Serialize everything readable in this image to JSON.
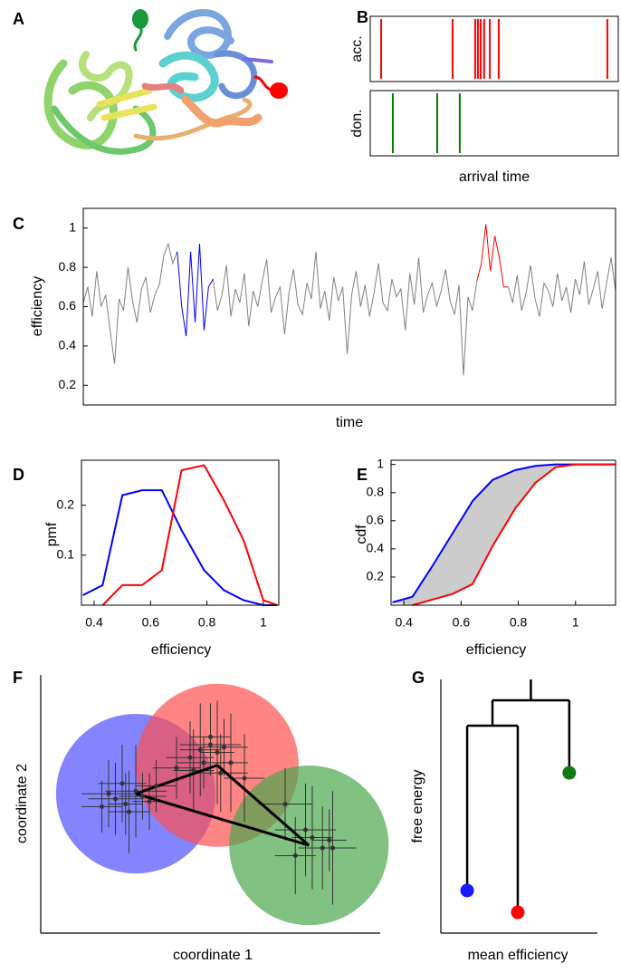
{
  "chart_data": [
    {
      "type": "image",
      "panel": "A"
    },
    {
      "type": "raster",
      "panel": "B",
      "xlabel": "arrival time",
      "xlim": [
        0,
        100
      ],
      "series": [
        {
          "name": "acc.",
          "color": "#ff0000",
          "values": [
            4.4,
            33.2,
            42.3,
            43.4,
            44.5,
            45.9,
            48.2,
            51.8,
            95.6
          ]
        },
        {
          "name": "don.",
          "color": "#008000",
          "values": [
            9.1,
            27.0,
            36.1
          ]
        }
      ]
    },
    {
      "type": "line",
      "panel": "C",
      "xlabel": "time",
      "ylabel": "efficiency",
      "x": [
        0,
        1,
        2,
        3,
        4,
        5,
        6,
        7,
        8,
        9,
        10,
        11,
        12,
        13,
        14,
        15,
        16,
        17,
        18,
        19,
        20,
        21,
        22,
        23,
        24,
        25,
        26,
        27,
        28,
        29,
        30,
        31,
        32,
        33,
        34,
        35,
        36,
        37,
        38,
        39,
        40,
        41,
        42,
        43,
        44,
        45,
        46,
        47,
        48,
        49,
        50,
        51,
        52,
        53,
        54,
        55,
        56,
        57,
        58,
        59,
        60,
        61,
        62,
        63,
        64,
        65,
        66,
        67,
        68,
        69,
        70,
        71,
        72,
        73,
        74,
        75,
        76,
        77,
        78,
        79,
        80,
        81,
        82,
        83,
        84,
        85,
        86,
        87,
        88,
        89,
        90,
        91,
        92,
        93,
        94,
        95,
        96,
        97,
        98,
        99,
        100,
        101,
        102,
        103,
        104,
        105,
        106,
        107,
        108,
        109,
        110,
        111,
        112,
        113,
        114,
        115,
        116,
        117,
        118,
        119
      ],
      "xlim": [
        0,
        119
      ],
      "ylim": [
        0.1,
        1.1
      ],
      "yticks": [
        0.2,
        0.4,
        0.6,
        0.8,
        1
      ],
      "series": [
        {
          "color": "#808080",
          "values": [
            0.62,
            0.7,
            0.55,
            0.78,
            0.6,
            0.66,
            0.48,
            0.31,
            0.64,
            0.58,
            0.8,
            0.63,
            0.52,
            0.69,
            0.75,
            0.57,
            0.66,
            0.71,
            0.86,
            0.92,
            0.82,
            0.88,
            null,
            null,
            null,
            null,
            null,
            null,
            null,
            0.74,
            0.58,
            0.66,
            0.81,
            0.55,
            0.69,
            0.62,
            0.77,
            0.5,
            0.68,
            0.6,
            0.73,
            0.84,
            0.57,
            0.65,
            0.7,
            0.46,
            0.67,
            0.79,
            0.61,
            0.56,
            0.72,
            0.64,
            0.88,
            0.59,
            0.68,
            0.53,
            0.75,
            0.63,
            0.7,
            0.36,
            0.66,
            0.78,
            0.6,
            0.71,
            0.55,
            0.67,
            0.82,
            0.62,
            0.58,
            0.74,
            0.65,
            0.69,
            0.48,
            0.77,
            0.61,
            0.85,
            0.57,
            0.66,
            0.72,
            0.6,
            0.68,
            0.79,
            0.63,
            0.56,
            0.71,
            0.25,
            0.65,
            0.58,
            0.73,
            null,
            null,
            null,
            null,
            null,
            null,
            0.7,
            0.62,
            0.76,
            0.58,
            0.67,
            0.81,
            0.64,
            0.55,
            0.72,
            0.68,
            0.6,
            0.77,
            0.63,
            0.7,
            0.57,
            0.74,
            0.66,
            0.83,
            0.61,
            0.69,
            0.78,
            0.59,
            0.72,
            0.85,
            0.68
          ]
        },
        {
          "color": "#0000ff",
          "values": [
            null,
            null,
            null,
            null,
            null,
            null,
            null,
            null,
            null,
            null,
            null,
            null,
            null,
            null,
            null,
            null,
            null,
            null,
            null,
            null,
            null,
            0.88,
            0.6,
            0.45,
            0.88,
            0.52,
            0.92,
            0.48,
            0.7,
            0.74,
            null,
            null,
            null,
            null,
            null,
            null,
            null,
            null,
            null,
            null,
            null,
            null,
            null,
            null,
            null,
            null,
            null,
            null,
            null,
            null,
            null,
            null,
            null,
            null,
            null,
            null,
            null,
            null,
            null,
            null,
            null,
            null,
            null,
            null,
            null,
            null,
            null,
            null,
            null,
            null,
            null,
            null,
            null,
            null,
            null,
            null,
            null,
            null,
            null,
            null,
            null,
            null,
            null,
            null,
            null,
            null,
            null,
            null,
            null,
            null,
            null,
            null,
            null,
            null,
            null,
            null,
            null,
            null,
            null,
            null,
            null,
            null,
            null,
            null,
            null,
            null,
            null,
            null,
            null,
            null,
            null,
            null,
            null,
            null,
            null,
            null,
            null,
            null,
            null,
            null
          ]
        },
        {
          "color": "#ff0000",
          "values": [
            null,
            null,
            null,
            null,
            null,
            null,
            null,
            null,
            null,
            null,
            null,
            null,
            null,
            null,
            null,
            null,
            null,
            null,
            null,
            null,
            null,
            null,
            null,
            null,
            null,
            null,
            null,
            null,
            null,
            null,
            null,
            null,
            null,
            null,
            null,
            null,
            null,
            null,
            null,
            null,
            null,
            null,
            null,
            null,
            null,
            null,
            null,
            null,
            null,
            null,
            null,
            null,
            null,
            null,
            null,
            null,
            null,
            null,
            null,
            null,
            null,
            null,
            null,
            null,
            null,
            null,
            null,
            null,
            null,
            null,
            null,
            null,
            null,
            null,
            null,
            null,
            null,
            null,
            null,
            null,
            null,
            null,
            null,
            null,
            null,
            null,
            null,
            null,
            0.73,
            0.82,
            1.02,
            0.78,
            0.96,
            0.85,
            0.7,
            0.7,
            null,
            null,
            null,
            null,
            null,
            null,
            null,
            null,
            null,
            null,
            null,
            null,
            null,
            null,
            null,
            null,
            null,
            null,
            null,
            null,
            null,
            null,
            null,
            null
          ]
        }
      ]
    },
    {
      "type": "line",
      "panel": "D",
      "xlabel": "efficiency",
      "ylabel": "pmf",
      "x": [
        0.36,
        0.43,
        0.5,
        0.57,
        0.64,
        0.71,
        0.79,
        0.86,
        0.93,
        1.0,
        1.05
      ],
      "xlim": [
        0.355,
        1.055
      ],
      "ylim": [
        0,
        0.29
      ],
      "xticks": [
        0.4,
        0.6,
        0.8,
        1
      ],
      "yticks": [
        0.1,
        0.2
      ],
      "series": [
        {
          "color": "#0000ff",
          "values": [
            0.02,
            0.04,
            0.22,
            0.23,
            0.23,
            0.15,
            0.07,
            0.03,
            0.01,
            0,
            0
          ]
        },
        {
          "color": "#ff0000",
          "values": [
            null,
            0,
            0.04,
            0.04,
            0.07,
            0.27,
            0.28,
            0.21,
            0.13,
            0.01,
            0
          ]
        }
      ]
    },
    {
      "type": "line",
      "panel": "E",
      "xlabel": "efficiency",
      "ylabel": "cdf",
      "fill_between": "#cccccc",
      "x": [
        0.36,
        0.43,
        0.5,
        0.57,
        0.64,
        0.71,
        0.79,
        0.86,
        0.93,
        1.0,
        1.14
      ],
      "xlim": [
        0.355,
        1.14
      ],
      "ylim": [
        0,
        1.03
      ],
      "xticks": [
        0.4,
        0.6,
        0.8,
        1
      ],
      "yticks": [
        0.2,
        0.4,
        0.6,
        0.8,
        1
      ],
      "series": [
        {
          "color": "#0000ff",
          "values": [
            0.02,
            0.06,
            0.28,
            0.51,
            0.74,
            0.89,
            0.96,
            0.99,
            1,
            1,
            1
          ]
        },
        {
          "color": "#ff0000",
          "values": [
            null,
            0,
            0.04,
            0.08,
            0.15,
            0.42,
            0.69,
            0.87,
            0.98,
            1,
            1
          ]
        }
      ]
    },
    {
      "type": "scatter",
      "panel": "F",
      "xlabel": "coordinate 1",
      "ylabel": "coordinate 2",
      "xlim": [
        0,
        100
      ],
      "ylim": [
        0,
        100
      ],
      "clusters": [
        {
          "color": "#5050ff",
          "x": 28,
          "y": 54,
          "r": 23.5
        },
        {
          "color": "#ff5050",
          "x": 52,
          "y": 65,
          "r": 24
        },
        {
          "color": "#4ca64c",
          "x": 79,
          "y": 34,
          "r": 23.5
        }
      ],
      "points": {
        "x": [
          18,
          22,
          25,
          28,
          30,
          26,
          32,
          20,
          34,
          24,
          44,
          47,
          50,
          52,
          48,
          45,
          54,
          56,
          50,
          53,
          40,
          60,
          72,
          80,
          83,
          85,
          78,
          75,
          86
        ],
        "y": [
          49,
          52,
          50,
          55,
          53,
          47,
          51,
          54,
          57,
          58,
          68,
          71,
          73,
          70,
          66,
          63,
          72,
          66,
          76,
          62,
          64,
          60,
          50,
          37,
          33,
          36,
          40,
          30,
          33
        ],
        "xerr": [
          6,
          8,
          5,
          9,
          7,
          6,
          5,
          8,
          6,
          7,
          7,
          6,
          9,
          5,
          8,
          6,
          7,
          5,
          6,
          8,
          7,
          6,
          8,
          6,
          7,
          5,
          9,
          6,
          7
        ],
        "yerr": [
          10,
          14,
          12,
          18,
          9,
          16,
          11,
          13,
          10,
          15,
          14,
          18,
          12,
          20,
          10,
          16,
          11,
          19,
          13,
          15,
          12,
          17,
          14,
          20,
          16,
          12,
          18,
          15,
          22
        ]
      }
    },
    {
      "type": "dendrogram",
      "panel": "G",
      "xlabel": "mean efficiency",
      "ylabel": "free energy",
      "xlim": [
        0,
        100
      ],
      "ylim": [
        0,
        100
      ],
      "leaves": {
        "x": [
          16.8,
          49.1,
          82
        ],
        "y": [
          16.8,
          8.2,
          63.2
        ],
        "colors": [
          "#1a1aff",
          "#ff0000",
          "#127a12"
        ]
      },
      "merge_levels": [
        81.8,
        91.8
      ]
    }
  ]
}
